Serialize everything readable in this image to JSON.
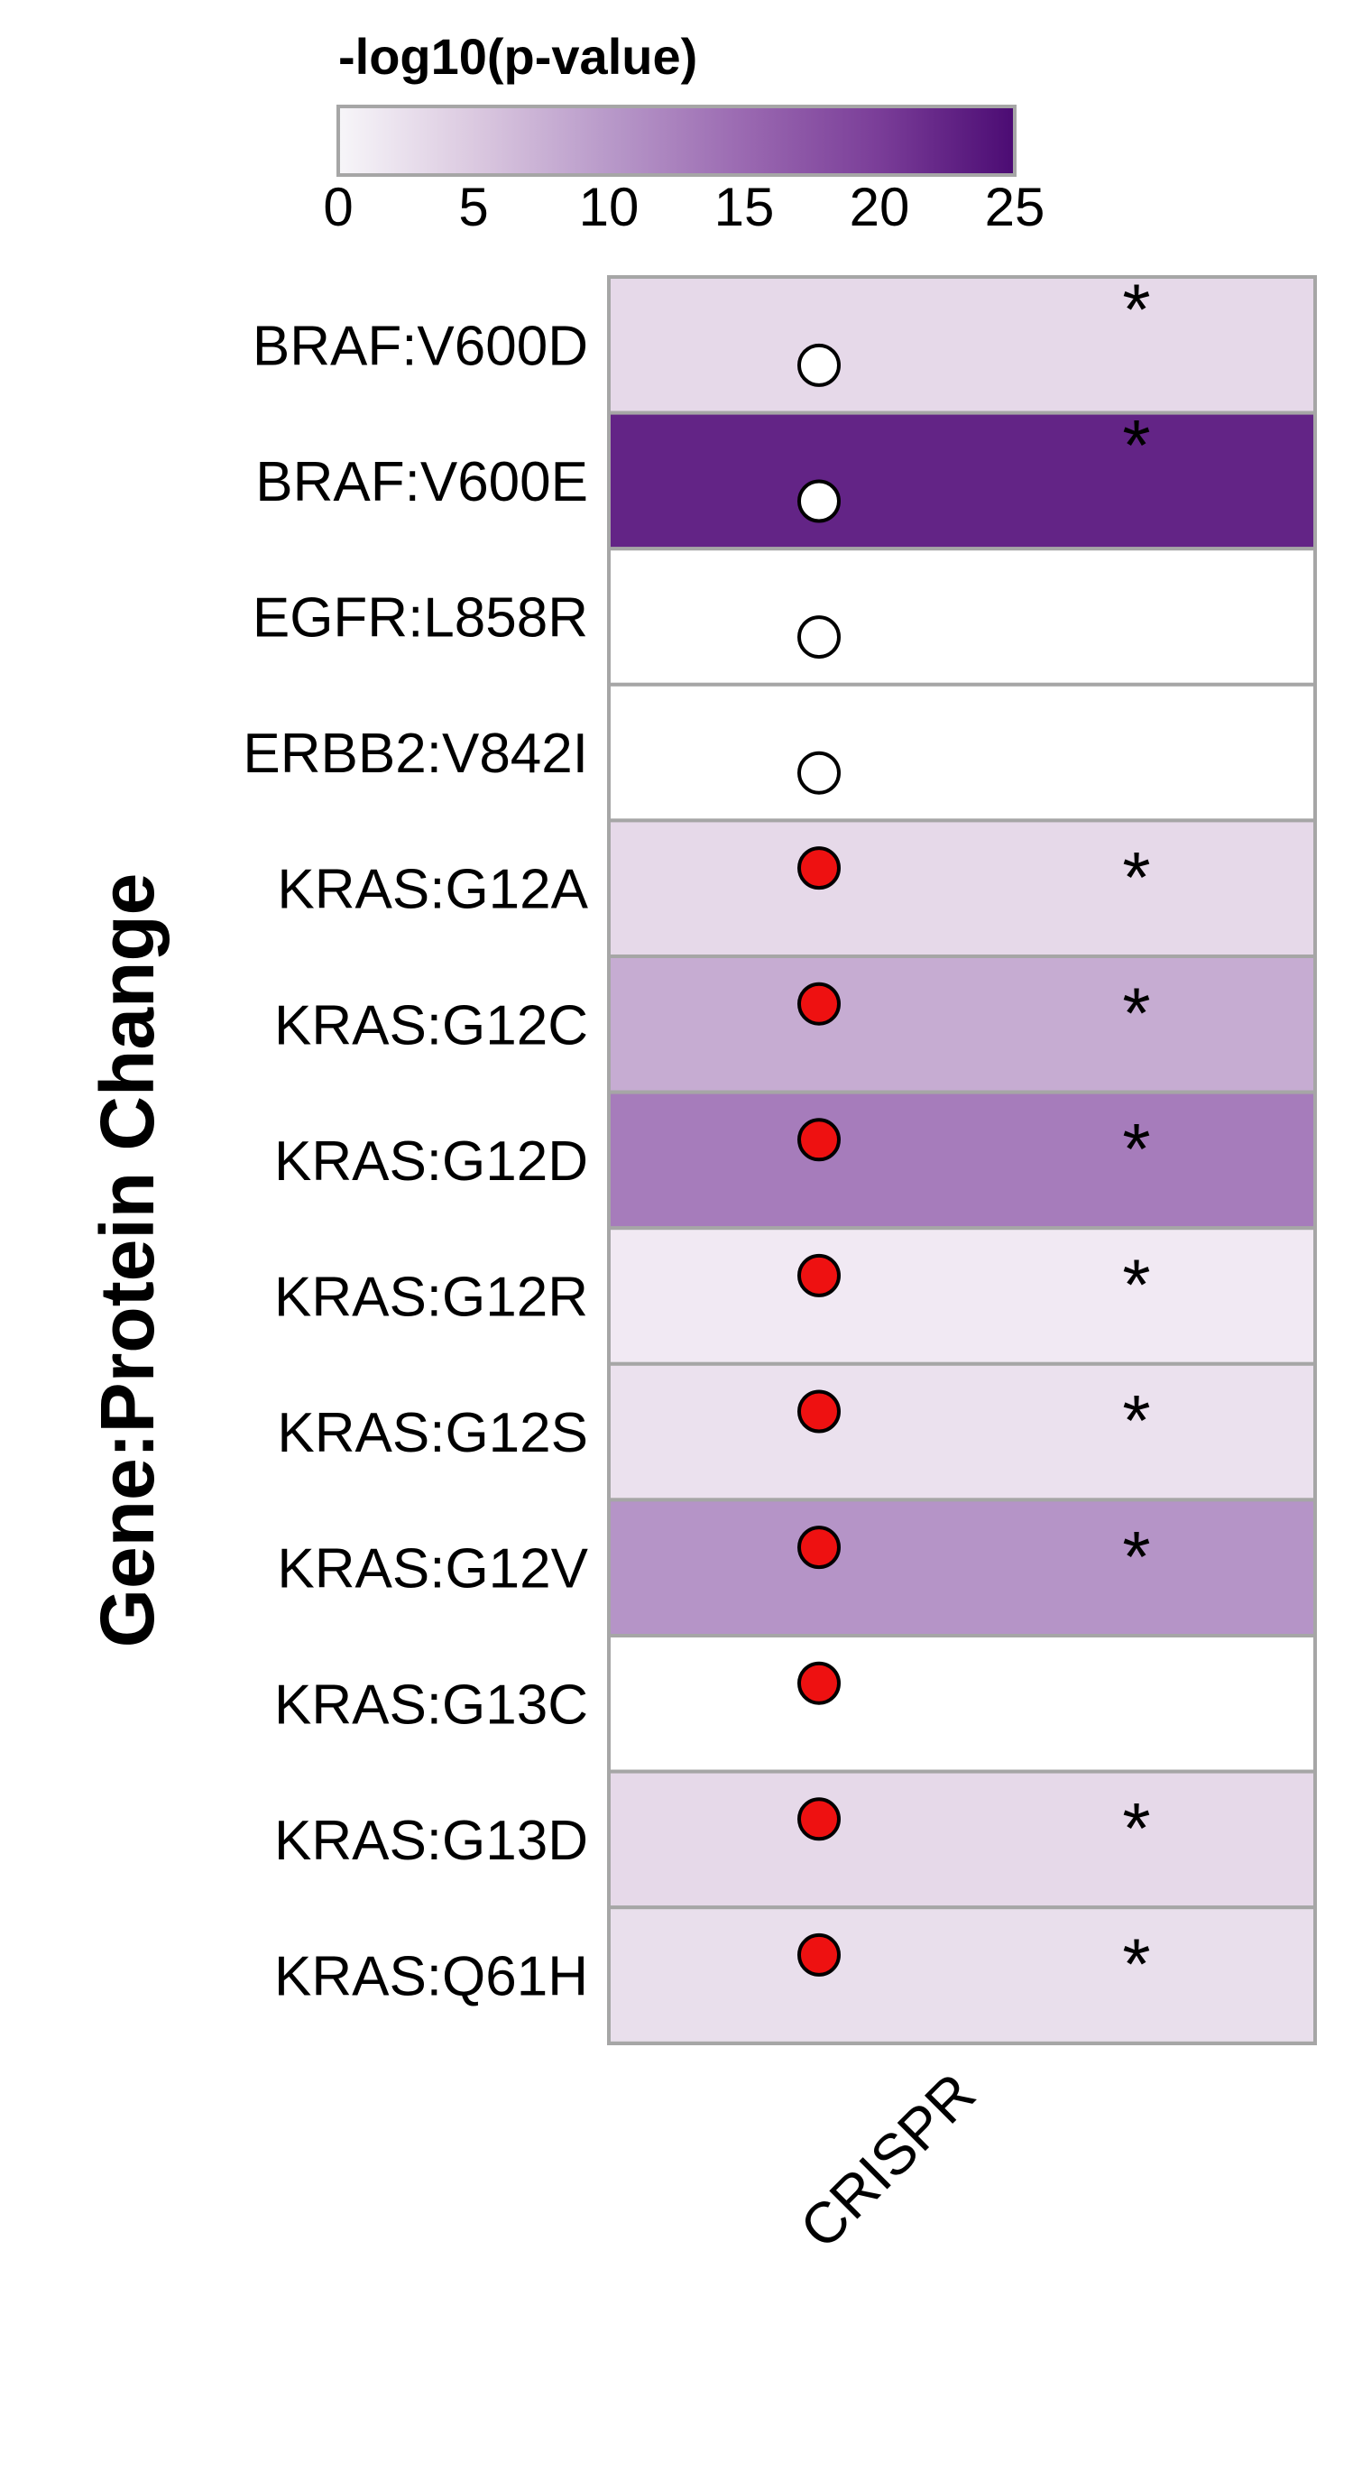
{
  "chart_data": {
    "type": "heatmap",
    "colorbar": {
      "title": "-log10(p-value)",
      "range": [
        0,
        25
      ],
      "ticks": [
        0,
        5,
        10,
        15,
        20,
        25
      ],
      "color_low": "#f7f6f9",
      "color_high": "#4b0b73"
    },
    "ylabel": "Gene:Protein Change",
    "xlabel": "",
    "columns": [
      "CRISPR"
    ],
    "rows": [
      {
        "label": "BRAF:V600D",
        "value": 3.5,
        "dot": "white",
        "star": "*"
      },
      {
        "label": "BRAF:V600E",
        "value": 22.5,
        "dot": "white",
        "star": "*"
      },
      {
        "label": "EGFR:L858R",
        "value": 0,
        "dot": "white",
        "star": ""
      },
      {
        "label": "ERBB2:V842I",
        "value": 0,
        "dot": "white",
        "star": ""
      },
      {
        "label": "KRAS:G12A",
        "value": 3.5,
        "dot": "red",
        "star": "*"
      },
      {
        "label": "KRAS:G12C",
        "value": 8,
        "dot": "red",
        "star": "*"
      },
      {
        "label": "KRAS:G12D",
        "value": 13,
        "dot": "red",
        "star": "*"
      },
      {
        "label": "KRAS:G12R",
        "value": 2,
        "dot": "red",
        "star": "*"
      },
      {
        "label": "KRAS:G12S",
        "value": 2.8,
        "dot": "red",
        "star": "*"
      },
      {
        "label": "KRAS:G12V",
        "value": 10.5,
        "dot": "red",
        "star": "*"
      },
      {
        "label": "KRAS:G13C",
        "value": 0,
        "dot": "red",
        "star": ""
      },
      {
        "label": "KRAS:G13D",
        "value": 3.5,
        "dot": "red",
        "star": "*"
      },
      {
        "label": "KRAS:Q61H",
        "value": 3,
        "dot": "red",
        "star": "*"
      }
    ],
    "dot_colors": {
      "red": "#ee1111",
      "white": "#ffffff"
    },
    "grid_color": "#a6a6a6"
  }
}
